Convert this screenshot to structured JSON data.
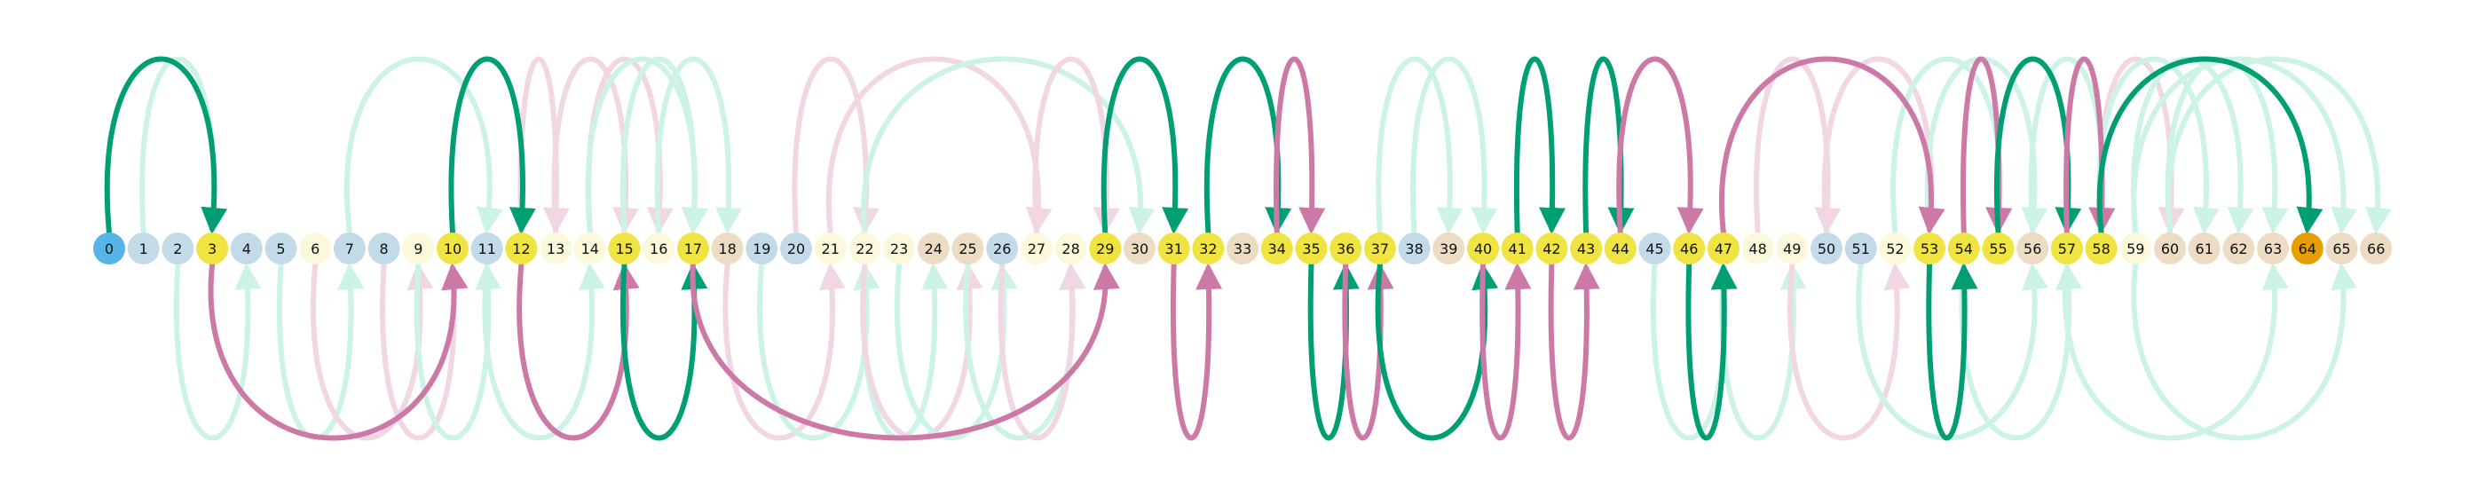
{
  "diagram": {
    "nodes": [
      {
        "label": "0",
        "kind": "start"
      },
      {
        "label": "1",
        "kind": "blue"
      },
      {
        "label": "2",
        "kind": "blue"
      },
      {
        "label": "3",
        "kind": "yellow"
      },
      {
        "label": "4",
        "kind": "blue"
      },
      {
        "label": "5",
        "kind": "blue"
      },
      {
        "label": "6",
        "kind": "cream"
      },
      {
        "label": "7",
        "kind": "blue"
      },
      {
        "label": "8",
        "kind": "blue"
      },
      {
        "label": "9",
        "kind": "cream"
      },
      {
        "label": "10",
        "kind": "yellow"
      },
      {
        "label": "11",
        "kind": "blue"
      },
      {
        "label": "12",
        "kind": "yellow"
      },
      {
        "label": "13",
        "kind": "cream"
      },
      {
        "label": "14",
        "kind": "cream"
      },
      {
        "label": "15",
        "kind": "yellow"
      },
      {
        "label": "16",
        "kind": "cream"
      },
      {
        "label": "17",
        "kind": "yellow"
      },
      {
        "label": "18",
        "kind": "tan"
      },
      {
        "label": "19",
        "kind": "blue"
      },
      {
        "label": "20",
        "kind": "blue"
      },
      {
        "label": "21",
        "kind": "cream"
      },
      {
        "label": "22",
        "kind": "cream"
      },
      {
        "label": "23",
        "kind": "cream"
      },
      {
        "label": "24",
        "kind": "tan"
      },
      {
        "label": "25",
        "kind": "tan"
      },
      {
        "label": "26",
        "kind": "blue"
      },
      {
        "label": "27",
        "kind": "cream"
      },
      {
        "label": "28",
        "kind": "cream"
      },
      {
        "label": "29",
        "kind": "yellow"
      },
      {
        "label": "30",
        "kind": "tan"
      },
      {
        "label": "31",
        "kind": "yellow"
      },
      {
        "label": "32",
        "kind": "yellow"
      },
      {
        "label": "33",
        "kind": "tan"
      },
      {
        "label": "34",
        "kind": "yellow"
      },
      {
        "label": "35",
        "kind": "yellow"
      },
      {
        "label": "36",
        "kind": "yellow"
      },
      {
        "label": "37",
        "kind": "yellow"
      },
      {
        "label": "38",
        "kind": "blue"
      },
      {
        "label": "39",
        "kind": "tan"
      },
      {
        "label": "40",
        "kind": "yellow"
      },
      {
        "label": "41",
        "kind": "yellow"
      },
      {
        "label": "42",
        "kind": "yellow"
      },
      {
        "label": "43",
        "kind": "yellow"
      },
      {
        "label": "44",
        "kind": "yellow"
      },
      {
        "label": "45",
        "kind": "blue"
      },
      {
        "label": "46",
        "kind": "yellow"
      },
      {
        "label": "47",
        "kind": "yellow"
      },
      {
        "label": "48",
        "kind": "cream"
      },
      {
        "label": "49",
        "kind": "cream"
      },
      {
        "label": "50",
        "kind": "blue"
      },
      {
        "label": "51",
        "kind": "blue"
      },
      {
        "label": "52",
        "kind": "cream"
      },
      {
        "label": "53",
        "kind": "yellow"
      },
      {
        "label": "54",
        "kind": "yellow"
      },
      {
        "label": "55",
        "kind": "yellow"
      },
      {
        "label": "56",
        "kind": "tan"
      },
      {
        "label": "57",
        "kind": "yellow"
      },
      {
        "label": "58",
        "kind": "yellow"
      },
      {
        "label": "59",
        "kind": "cream"
      },
      {
        "label": "60",
        "kind": "tan"
      },
      {
        "label": "61",
        "kind": "tan"
      },
      {
        "label": "62",
        "kind": "tan"
      },
      {
        "label": "63",
        "kind": "tan"
      },
      {
        "label": "64",
        "kind": "end"
      },
      {
        "label": "65",
        "kind": "tan"
      },
      {
        "label": "66",
        "kind": "tan"
      }
    ],
    "edges": [
      {
        "from": 0,
        "to": 3,
        "side": "top",
        "color": "green",
        "bold": true
      },
      {
        "from": 3,
        "to": 10,
        "side": "bottom",
        "color": "pink",
        "bold": true
      },
      {
        "from": 10,
        "to": 12,
        "side": "top",
        "color": "green",
        "bold": true
      },
      {
        "from": 12,
        "to": 15,
        "side": "bottom",
        "color": "pink",
        "bold": true
      },
      {
        "from": 15,
        "to": 17,
        "side": "bottom",
        "color": "green",
        "bold": true
      },
      {
        "from": 17,
        "to": 29,
        "side": "bottom",
        "color": "pink",
        "bold": true
      },
      {
        "from": 29,
        "to": 31,
        "side": "top",
        "color": "green",
        "bold": true
      },
      {
        "from": 31,
        "to": 32,
        "side": "bottom",
        "color": "pink",
        "bold": true
      },
      {
        "from": 32,
        "to": 34,
        "side": "top",
        "color": "green",
        "bold": true
      },
      {
        "from": 34,
        "to": 35,
        "side": "top",
        "color": "pink",
        "bold": true
      },
      {
        "from": 35,
        "to": 36,
        "side": "bottom",
        "color": "green",
        "bold": true
      },
      {
        "from": 36,
        "to": 37,
        "side": "bottom",
        "color": "pink",
        "bold": true
      },
      {
        "from": 37,
        "to": 40,
        "side": "bottom",
        "color": "green",
        "bold": true
      },
      {
        "from": 40,
        "to": 41,
        "side": "bottom",
        "color": "pink",
        "bold": true
      },
      {
        "from": 41,
        "to": 42,
        "side": "top",
        "color": "green",
        "bold": true
      },
      {
        "from": 42,
        "to": 43,
        "side": "bottom",
        "color": "pink",
        "bold": true
      },
      {
        "from": 43,
        "to": 44,
        "side": "top",
        "color": "green",
        "bold": true
      },
      {
        "from": 44,
        "to": 46,
        "side": "top",
        "color": "pink",
        "bold": true
      },
      {
        "from": 46,
        "to": 47,
        "side": "bottom",
        "color": "green",
        "bold": true
      },
      {
        "from": 47,
        "to": 53,
        "side": "top",
        "color": "pink",
        "bold": true
      },
      {
        "from": 53,
        "to": 54,
        "side": "bottom",
        "color": "green",
        "bold": true
      },
      {
        "from": 54,
        "to": 55,
        "side": "top",
        "color": "pink",
        "bold": true
      },
      {
        "from": 55,
        "to": 57,
        "side": "top",
        "color": "green",
        "bold": true
      },
      {
        "from": 57,
        "to": 58,
        "side": "top",
        "color": "pink",
        "bold": true
      },
      {
        "from": 58,
        "to": 64,
        "side": "top",
        "color": "green",
        "bold": true
      },
      {
        "from": 1,
        "to": 3,
        "side": "top",
        "color": "green",
        "bold": false
      },
      {
        "from": 2,
        "to": 4,
        "side": "bottom",
        "color": "green",
        "bold": false
      },
      {
        "from": 5,
        "to": 7,
        "side": "bottom",
        "color": "green",
        "bold": false
      },
      {
        "from": 7,
        "to": 11,
        "side": "top",
        "color": "green",
        "bold": false
      },
      {
        "from": 6,
        "to": 9,
        "side": "bottom",
        "color": "pink",
        "bold": false
      },
      {
        "from": 8,
        "to": 10,
        "side": "bottom",
        "color": "pink",
        "bold": false
      },
      {
        "from": 9,
        "to": 11,
        "side": "bottom",
        "color": "green",
        "bold": false
      },
      {
        "from": 11,
        "to": 14,
        "side": "bottom",
        "color": "green",
        "bold": false
      },
      {
        "from": 13,
        "to": 15,
        "side": "top",
        "color": "pink",
        "bold": false
      },
      {
        "from": 12,
        "to": 13,
        "side": "top",
        "color": "pink",
        "bold": false
      },
      {
        "from": 14,
        "to": 16,
        "side": "top",
        "color": "pink",
        "bold": false
      },
      {
        "from": 15,
        "to": 17,
        "side": "top",
        "color": "green",
        "bold": false
      },
      {
        "from": 16,
        "to": 18,
        "side": "top",
        "color": "green",
        "bold": false
      },
      {
        "from": 14,
        "to": 17,
        "side": "top",
        "color": "green",
        "bold": false
      },
      {
        "from": 18,
        "to": 21,
        "side": "bottom",
        "color": "pink",
        "bold": false
      },
      {
        "from": 21,
        "to": 27,
        "side": "top",
        "color": "pink",
        "bold": false
      },
      {
        "from": 20,
        "to": 22,
        "side": "top",
        "color": "pink",
        "bold": false
      },
      {
        "from": 22,
        "to": 24,
        "side": "bottom",
        "color": "green",
        "bold": false
      },
      {
        "from": 19,
        "to": 22,
        "side": "bottom",
        "color": "green",
        "bold": false
      },
      {
        "from": 22,
        "to": 25,
        "side": "bottom",
        "color": "pink",
        "bold": false
      },
      {
        "from": 23,
        "to": 26,
        "side": "bottom",
        "color": "green",
        "bold": false
      },
      {
        "from": 22,
        "to": 30,
        "side": "top",
        "color": "green",
        "bold": false
      },
      {
        "from": 25,
        "to": 28,
        "side": "bottom",
        "color": "green",
        "bold": false
      },
      {
        "from": 26,
        "to": 28,
        "side": "bottom",
        "color": "pink",
        "bold": false
      },
      {
        "from": 27,
        "to": 29,
        "side": "top",
        "color": "pink",
        "bold": false
      },
      {
        "from": 38,
        "to": 40,
        "side": "top",
        "color": "green",
        "bold": false
      },
      {
        "from": 37,
        "to": 39,
        "side": "top",
        "color": "green",
        "bold": false
      },
      {
        "from": 45,
        "to": 47,
        "side": "bottom",
        "color": "green",
        "bold": false
      },
      {
        "from": 47,
        "to": 49,
        "side": "bottom",
        "color": "green",
        "bold": false
      },
      {
        "from": 48,
        "to": 50,
        "side": "top",
        "color": "pink",
        "bold": false
      },
      {
        "from": 49,
        "to": 52,
        "side": "bottom",
        "color": "pink",
        "bold": false
      },
      {
        "from": 50,
        "to": 53,
        "side": "top",
        "color": "pink",
        "bold": false
      },
      {
        "from": 52,
        "to": 55,
        "side": "top",
        "color": "green",
        "bold": false
      },
      {
        "from": 53,
        "to": 56,
        "side": "top",
        "color": "green",
        "bold": false
      },
      {
        "from": 51,
        "to": 56,
        "side": "bottom",
        "color": "green",
        "bold": false
      },
      {
        "from": 54,
        "to": 57,
        "side": "bottom",
        "color": "green",
        "bold": false
      },
      {
        "from": 56,
        "to": 58,
        "side": "top",
        "color": "green",
        "bold": false
      },
      {
        "from": 58,
        "to": 60,
        "side": "top",
        "color": "pink",
        "bold": false
      },
      {
        "from": 58,
        "to": 61,
        "side": "top",
        "color": "green",
        "bold": false
      },
      {
        "from": 59,
        "to": 62,
        "side": "top",
        "color": "green",
        "bold": false
      },
      {
        "from": 60,
        "to": 63,
        "side": "top",
        "color": "green",
        "bold": false
      },
      {
        "from": 59,
        "to": 65,
        "side": "top",
        "color": "green",
        "bold": false
      },
      {
        "from": 60,
        "to": 66,
        "side": "top",
        "color": "green",
        "bold": false
      },
      {
        "from": 57,
        "to": 63,
        "side": "bottom",
        "color": "green",
        "bold": false
      },
      {
        "from": 59,
        "to": 65,
        "side": "bottom",
        "color": "green",
        "bold": false
      }
    ],
    "colors": {
      "start": "#56b4e9",
      "end": "#e69f00",
      "yellow": "#f0e442",
      "blue": "#c3dbe9",
      "cream": "#fbf8dc",
      "tan": "#ecdcc4",
      "green": "#009e73",
      "pink": "#cc79a7",
      "green_faint": "#cdf2e6",
      "pink_faint": "#f1d6e4"
    }
  }
}
